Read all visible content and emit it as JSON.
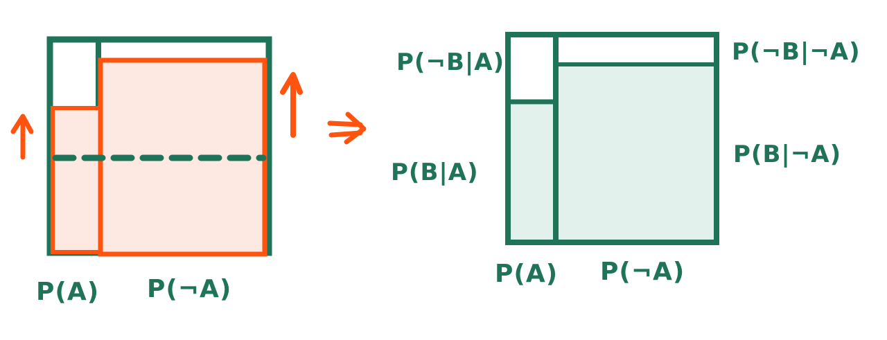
{
  "colors": {
    "green": "#1f7359",
    "orange": "#ff5410",
    "orange_fill": "#fde9e1",
    "green_fill": "#e3f1ec",
    "background": "#ffffff"
  },
  "left_diagram": {
    "label_pa": "P(A)",
    "label_pnota": "P(¬A)"
  },
  "right_diagram": {
    "label_pnotb_given_a": "P(¬B|A)",
    "label_pb_given_a": "P(B|A)",
    "label_pnotb_given_nota": "P(¬B|¬A)",
    "label_pb_given_nota": "P(B|¬A)",
    "label_pa": "P(A)",
    "label_pnota": "P(¬A)"
  },
  "icons": [
    "up-arrow-icon",
    "double-right-arrow-icon"
  ]
}
